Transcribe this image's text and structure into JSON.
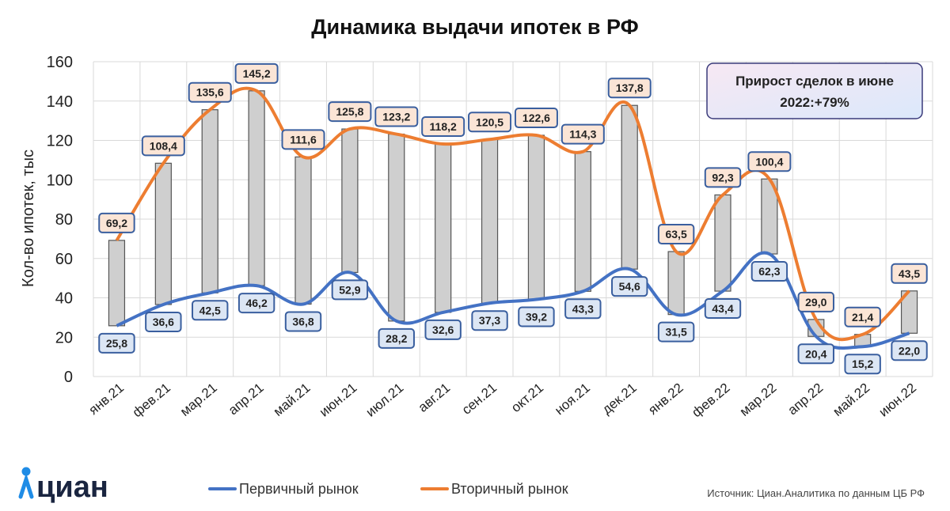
{
  "colors": {
    "primary": "#4472c4",
    "secondary": "#ed7d31",
    "bar_fill": "#cfcfcf",
    "bar_stroke": "#555555",
    "label_primary_bg": "#dce6f4",
    "label_secondary_bg": "#fbe5d6",
    "label_border": "#3a5f9f",
    "grid": "#d9d9d9",
    "logo": "#1a2540",
    "logo_accent": "#1f8ce6"
  },
  "brand": {
    "logo_text": "циан"
  },
  "callout": {
    "line1": "Прирост сделок в июне",
    "line2": "2022:+79%"
  },
  "source": "Источник: Циан.Аналитика по данным ЦБ РФ",
  "chart_data": {
    "type": "line",
    "title": "Динамика выдачи ипотек в РФ",
    "xlabel": "",
    "ylabel": "Кол-во ипотек, тыс",
    "ylim": [
      0,
      160
    ],
    "yticks": [
      0,
      20,
      40,
      60,
      80,
      100,
      120,
      140,
      160
    ],
    "grid": true,
    "legend_position": "bottom",
    "categories": [
      "янв.21",
      "фев.21",
      "мар.21",
      "апр.21",
      "май.21",
      "июн.21",
      "июл.21",
      "авг.21",
      "сен.21",
      "окт.21",
      "ноя.21",
      "дек.21",
      "янв.22",
      "фев.22",
      "мар.22",
      "апр.22",
      "май.22",
      "июн.22"
    ],
    "series": [
      {
        "name": "Первичный рынок",
        "values": [
          25.8,
          36.6,
          42.5,
          46.2,
          36.8,
          52.9,
          28.2,
          32.6,
          37.3,
          39.2,
          43.3,
          54.6,
          31.5,
          43.4,
          62.3,
          20.4,
          15.2,
          22.0
        ]
      },
      {
        "name": "Вторичный рынок",
        "values": [
          69.2,
          108.4,
          135.6,
          145.2,
          111.6,
          125.8,
          123.2,
          118.2,
          120.5,
          122.6,
          114.3,
          137.8,
          63.5,
          92.3,
          100.4,
          29.0,
          21.4,
          43.5
        ]
      }
    ],
    "labels_primary": [
      "25,8",
      "36,6",
      "42,5",
      "46,2",
      "36,8",
      "52,9",
      "28,2",
      "32,6",
      "37,3",
      "39,2",
      "43,3",
      "54,6",
      "31,5",
      "43,4",
      "62,3",
      "20,4",
      "15,2",
      "22,0"
    ],
    "labels_secondary": [
      "69,2",
      "108,4",
      "135,6",
      "145,2",
      "111,6",
      "125,8",
      "123,2",
      "118,2",
      "120,5",
      "122,6",
      "114,3",
      "137,8",
      "63,5",
      "92,3",
      "100,4",
      "29,0",
      "21,4",
      "43,5"
    ]
  }
}
